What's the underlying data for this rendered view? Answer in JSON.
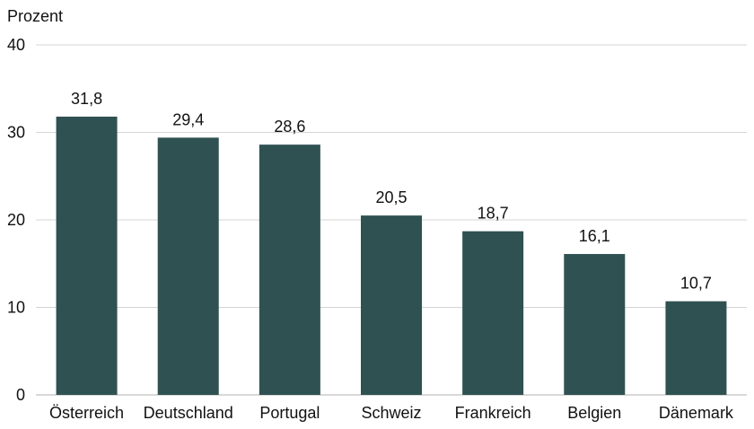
{
  "chart_data": {
    "type": "bar",
    "ylabel": "Prozent",
    "categories": [
      "Österreich",
      "Deutschland",
      "Portugal",
      "Schweiz",
      "Frankreich",
      "Belgien",
      "Dänemark"
    ],
    "values": [
      31.8,
      29.4,
      28.6,
      20.5,
      18.7,
      16.1,
      10.7
    ],
    "value_labels": [
      "31,8",
      "29,4",
      "28,6",
      "20,5",
      "18,7",
      "16,1",
      "10,7"
    ],
    "ylim": [
      0,
      40
    ],
    "yticks": [
      0,
      10,
      20,
      30,
      40
    ],
    "ytick_labels": [
      "0",
      "10",
      "20",
      "30",
      "40"
    ],
    "grid": true,
    "legend": "none",
    "bar_color": "#2f5152"
  }
}
